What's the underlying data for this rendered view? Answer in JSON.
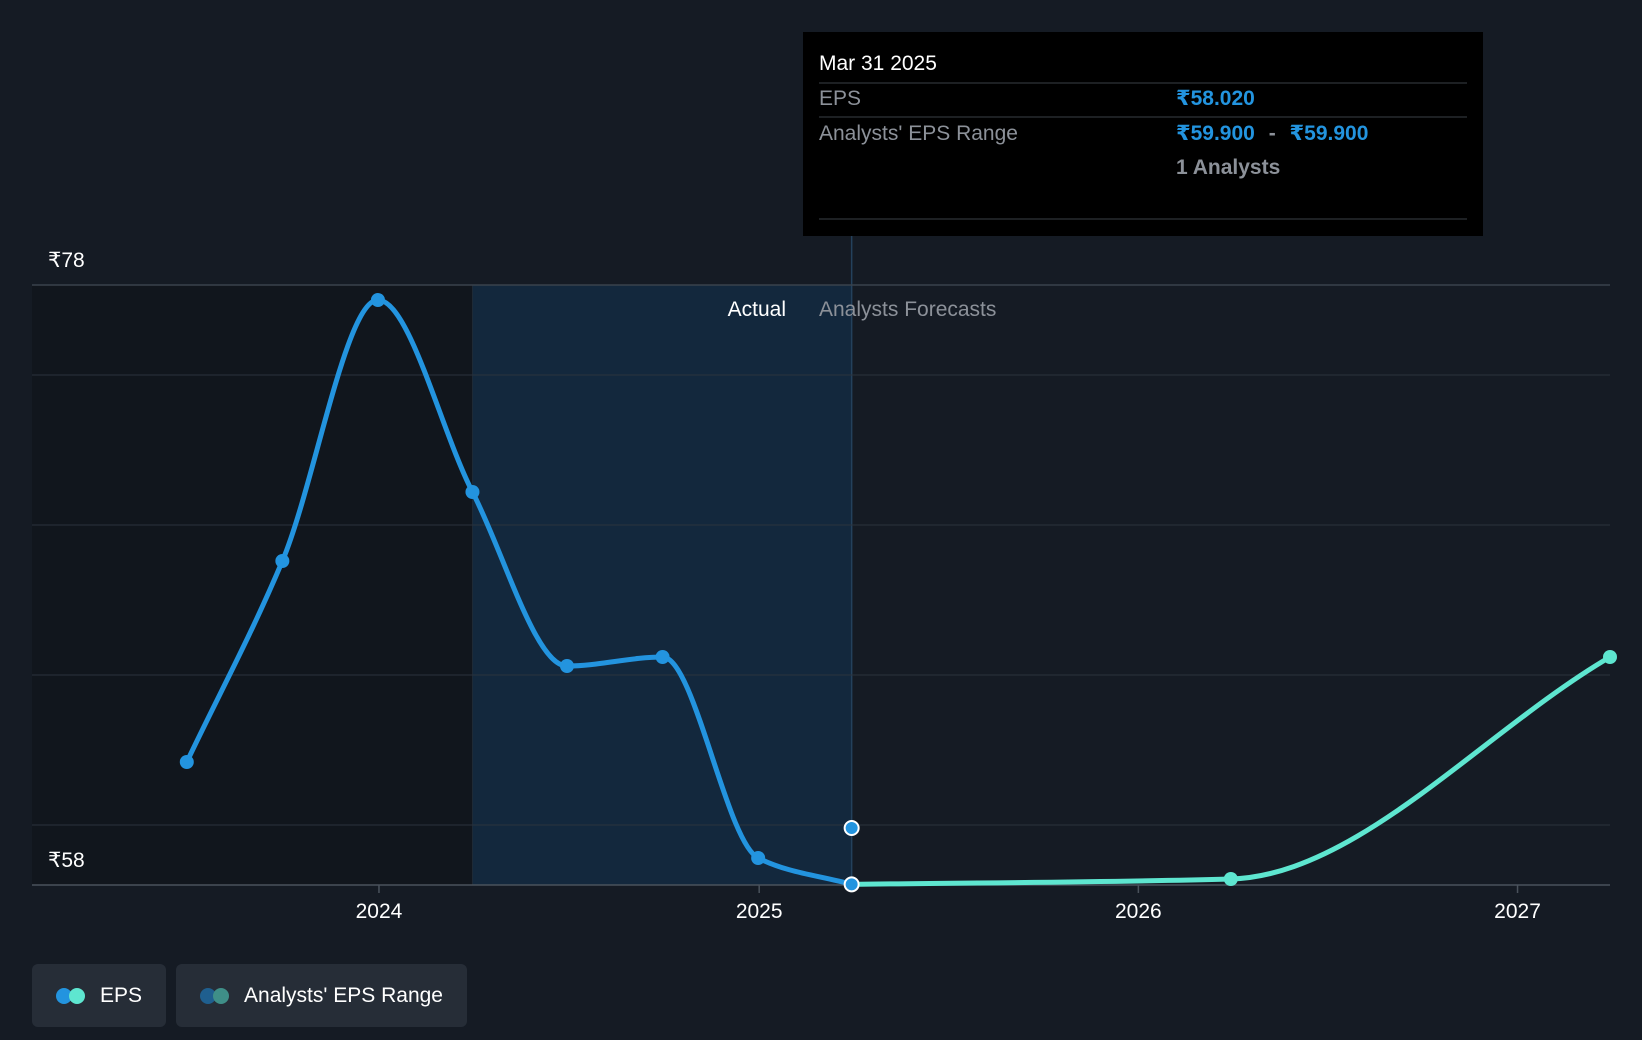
{
  "tooltip": {
    "date": "Mar 31 2025",
    "eps_label": "EPS",
    "eps_value": "₹58.020",
    "range_label": "Analysts' EPS Range",
    "range_low": "₹59.900",
    "range_sep": "-",
    "range_high": "₹59.900",
    "analysts": "1 Analysts"
  },
  "sections": {
    "actual": "Actual",
    "forecast": "Analysts Forecasts"
  },
  "legend": {
    "eps": "EPS",
    "range": "Analysts' EPS Range"
  },
  "colors": {
    "background": "#151b24",
    "actual_line": "#2394df",
    "forecast_line": "#5ee6d0",
    "range_dot": "#2394df",
    "highlight_band": "#13283d",
    "past_band": "#11161d",
    "gridline": "#2b333d",
    "tooltip_bg": "#000000",
    "tooltip_value": "#2394df"
  },
  "chart_data": {
    "type": "line",
    "currency": "₹",
    "y_ticks": [
      {
        "value": 78,
        "label": "₹78"
      },
      {
        "value": 58,
        "label": "₹58"
      }
    ],
    "ylim": [
      58,
      78
    ],
    "x_ticks": [
      {
        "value": "2024-01-01",
        "label": "2024"
      },
      {
        "value": "2025-01-01",
        "label": "2025"
      },
      {
        "value": "2026-01-01",
        "label": "2026"
      },
      {
        "value": "2027-01-01",
        "label": "2027"
      }
    ],
    "xlim": [
      "2023-02-01",
      "2027-03-31"
    ],
    "grid": true,
    "legend_position": "bottom-left",
    "highlight_start": "2024-03-31",
    "forecast_start": "2025-03-31",
    "series": [
      {
        "name": "EPS",
        "kind": "actual",
        "points": [
          {
            "x": "2023-06-30",
            "y": 62.1
          },
          {
            "x": "2023-09-30",
            "y": 68.8
          },
          {
            "x": "2023-12-31",
            "y": 77.5
          },
          {
            "x": "2024-03-31",
            "y": 71.1
          },
          {
            "x": "2024-06-30",
            "y": 65.3
          },
          {
            "x": "2024-09-30",
            "y": 65.6
          },
          {
            "x": "2024-12-31",
            "y": 58.9
          },
          {
            "x": "2025-03-31",
            "y": 58.02
          }
        ]
      },
      {
        "name": "EPS",
        "kind": "forecast",
        "points": [
          {
            "x": "2025-03-31",
            "y": 58.02
          },
          {
            "x": "2026-03-31",
            "y": 58.2
          },
          {
            "x": "2027-03-31",
            "y": 65.6
          }
        ]
      },
      {
        "name": "Analysts' EPS Range",
        "kind": "range",
        "points": [
          {
            "x": "2025-03-31",
            "low": 59.9,
            "high": 59.9
          }
        ]
      }
    ]
  }
}
